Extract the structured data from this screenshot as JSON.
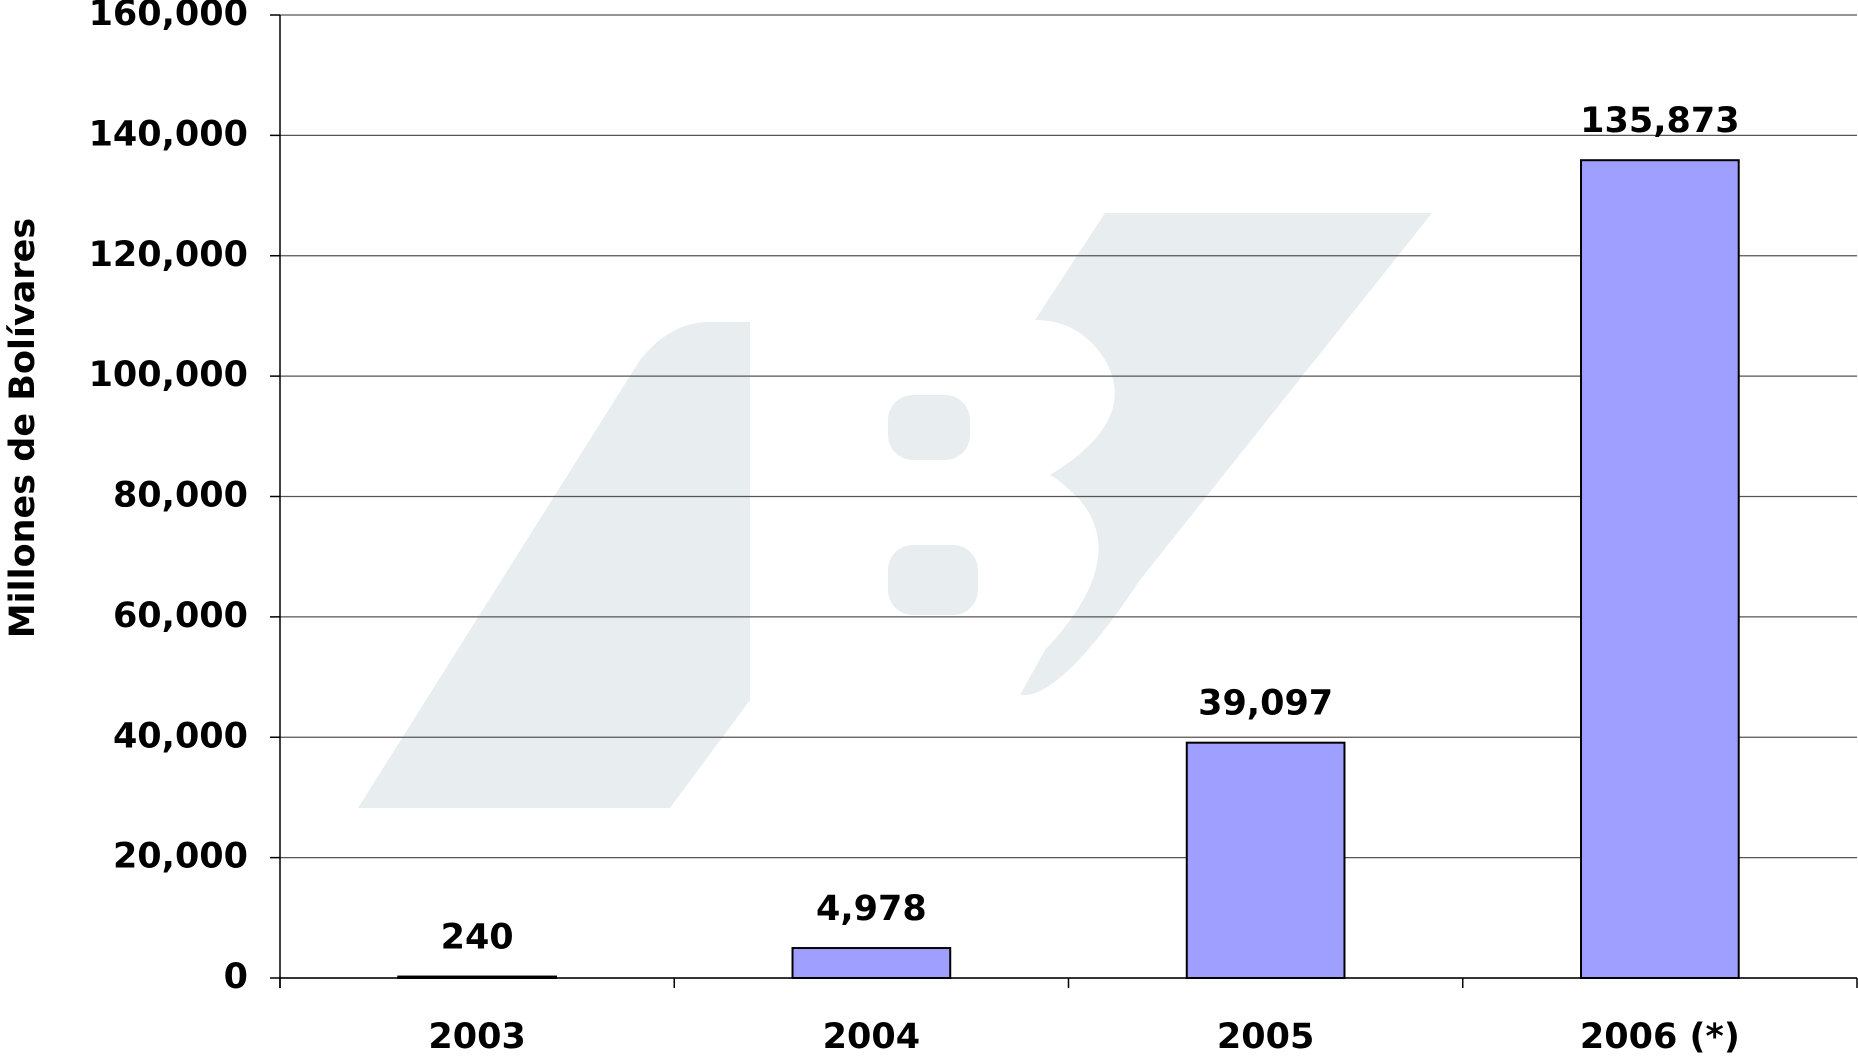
{
  "chart_data": {
    "type": "bar",
    "y_label": "Millones de Bolívares",
    "categories": [
      "2003",
      "2004",
      "2005",
      "2006 (*)"
    ],
    "values": [
      240,
      4978,
      39097,
      135873
    ],
    "value_labels": [
      "240",
      "4,978",
      "39,097",
      "135,873"
    ],
    "color": "#9f9fff",
    "ylim": [
      0,
      160000
    ],
    "yticks": [
      0,
      {
        "value": 20000,
        "label": "20,000"
      },
      {
        "value": 40000,
        "label": "40,000"
      },
      {
        "value": 60000,
        "label": "60,000"
      },
      {
        "value": 80000,
        "label": "80,000"
      },
      {
        "value": 100000,
        "label": "100,000"
      },
      {
        "value": 120000,
        "label": "120,000"
      },
      {
        "value": 140000,
        "label": "140,000"
      },
      {
        "value": 160000,
        "label": "160,000"
      }
    ],
    "grid": true
  }
}
